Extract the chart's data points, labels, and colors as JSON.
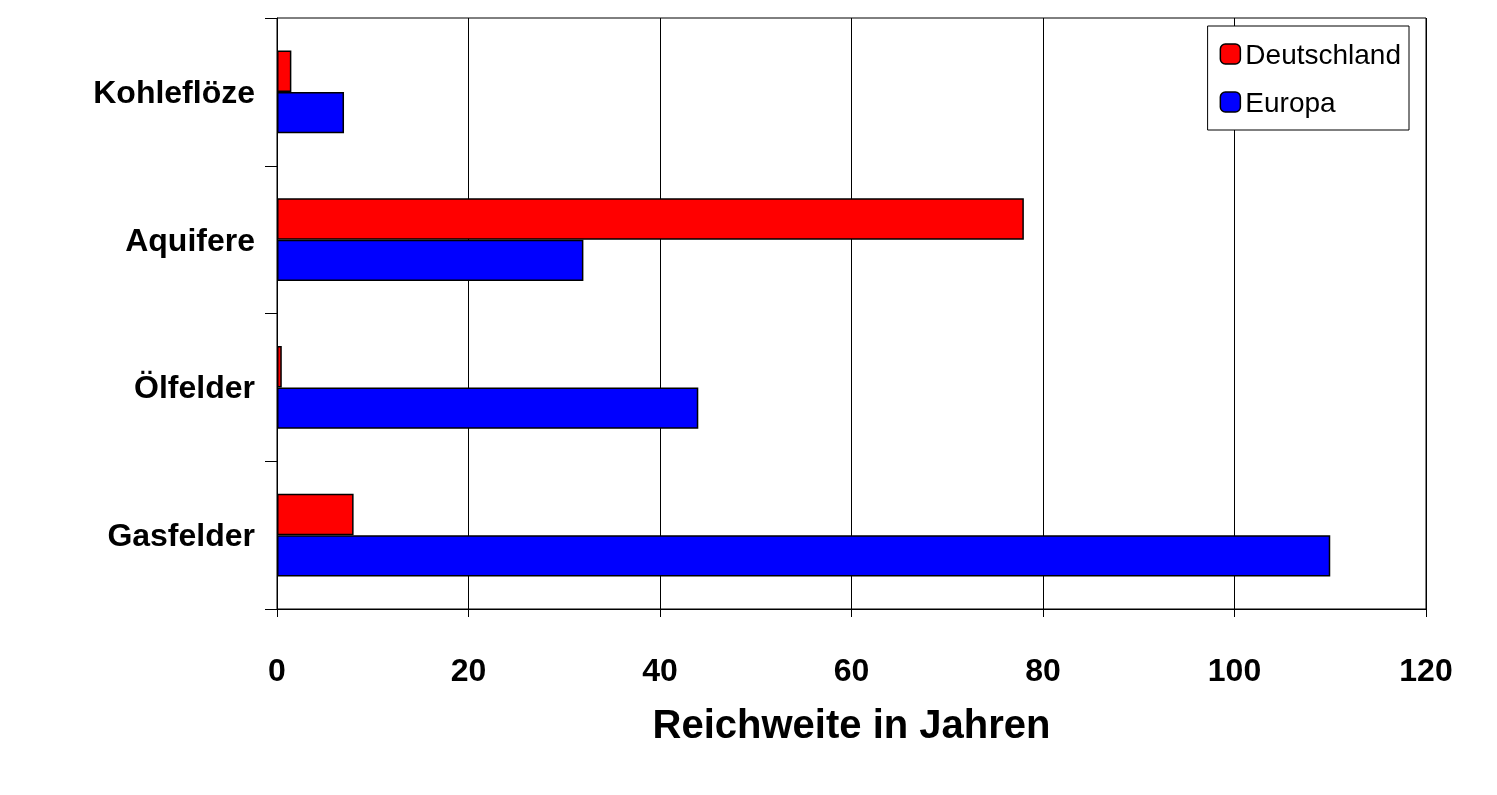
{
  "chart_data": {
    "type": "bar",
    "orientation": "horizontal",
    "xlabel": "Reichweite in Jahren",
    "categories": [
      "Kohleflöze",
      "Aquifere",
      "Ölfelder",
      "Gasfelder"
    ],
    "series": [
      {
        "name": "Deutschland",
        "color": "#ff0000",
        "values": [
          1.5,
          78,
          0.5,
          8
        ]
      },
      {
        "name": "Europa",
        "color": "#0000ff",
        "values": [
          7,
          32,
          44,
          110
        ]
      }
    ],
    "xlim": [
      0,
      120
    ],
    "xticks": [
      0,
      20,
      40,
      60,
      80,
      100,
      120
    ],
    "grid": "x",
    "legend": "top right"
  }
}
